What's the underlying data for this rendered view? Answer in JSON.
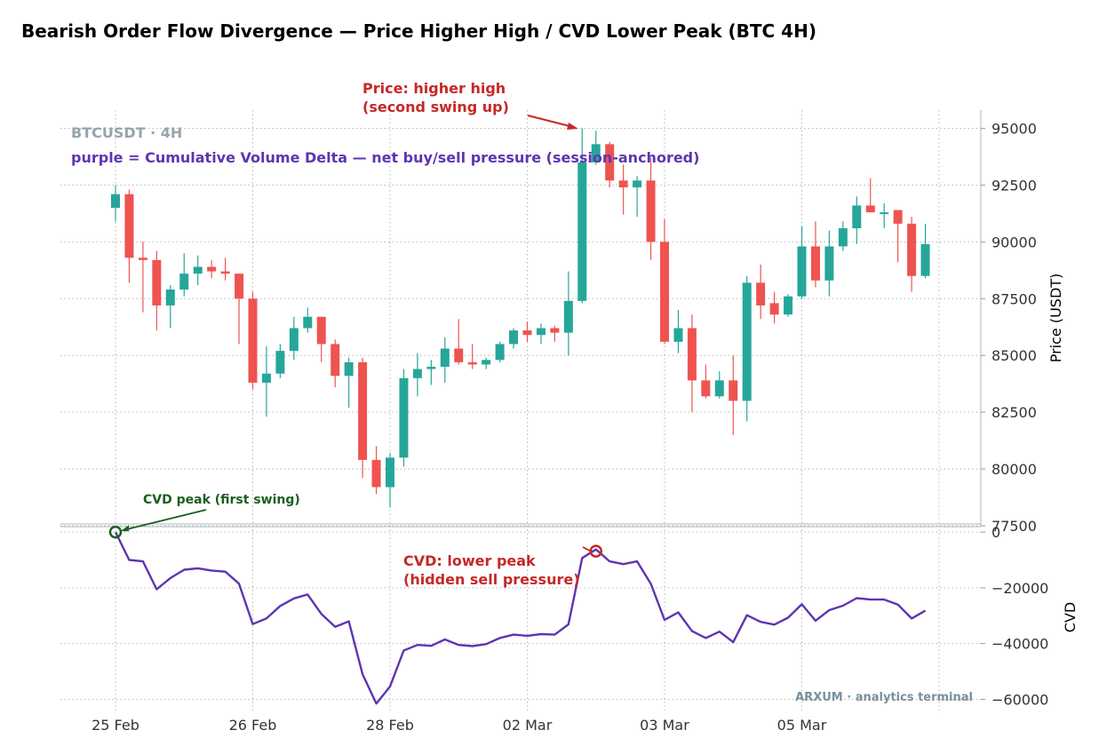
{
  "chart_data": {
    "type": "candlestick",
    "title": "Bearish Order Flow Divergence — Price Higher High / CVD Lower Peak (BTC 4H)",
    "watermark": "BTCUSDT · 4H",
    "legend_note": "purple = Cumulative Volume Delta — net buy/sell pressure (session-anchored)",
    "footer": "ARXUM · analytics terminal",
    "x_tick_labels": [
      "25 Feb",
      "26 Feb",
      "28 Feb",
      "02 Mar",
      "03 Mar",
      "05 Mar"
    ],
    "x_tick_index": [
      0,
      10,
      20,
      30,
      40,
      50
    ],
    "price_panel": {
      "ylabel": "Price (USDT)",
      "ylim": [
        77500,
        95800
      ],
      "yticks": [
        77500,
        80000,
        82500,
        85000,
        87500,
        90000,
        92500,
        95000
      ],
      "candles": [
        {
          "o": 91500,
          "h": 92500,
          "l": 90900,
          "c": 92100
        },
        {
          "o": 92100,
          "h": 92300,
          "l": 88200,
          "c": 89300
        },
        {
          "o": 89300,
          "h": 90000,
          "l": 86900,
          "c": 89200
        },
        {
          "o": 89200,
          "h": 89600,
          "l": 86100,
          "c": 87200
        },
        {
          "o": 87200,
          "h": 88100,
          "l": 86200,
          "c": 87900
        },
        {
          "o": 87900,
          "h": 89500,
          "l": 87600,
          "c": 88600
        },
        {
          "o": 88600,
          "h": 89400,
          "l": 88100,
          "c": 88900
        },
        {
          "o": 88900,
          "h": 89200,
          "l": 88400,
          "c": 88700
        },
        {
          "o": 88700,
          "h": 89300,
          "l": 88300,
          "c": 88600
        },
        {
          "o": 88600,
          "h": 88600,
          "l": 85500,
          "c": 87500
        },
        {
          "o": 87500,
          "h": 87800,
          "l": 83500,
          "c": 83800
        },
        {
          "o": 83800,
          "h": 85400,
          "l": 82300,
          "c": 84200
        },
        {
          "o": 84200,
          "h": 85500,
          "l": 84000,
          "c": 85200
        },
        {
          "o": 85200,
          "h": 86700,
          "l": 84800,
          "c": 86200
        },
        {
          "o": 86200,
          "h": 87100,
          "l": 86000,
          "c": 86700
        },
        {
          "o": 86700,
          "h": 86700,
          "l": 84700,
          "c": 85500
        },
        {
          "o": 85500,
          "h": 85700,
          "l": 83600,
          "c": 84100
        },
        {
          "o": 84100,
          "h": 84900,
          "l": 82700,
          "c": 84700
        },
        {
          "o": 84700,
          "h": 84900,
          "l": 79600,
          "c": 80400
        },
        {
          "o": 80400,
          "h": 81000,
          "l": 78900,
          "c": 79200
        },
        {
          "o": 79200,
          "h": 80700,
          "l": 78300,
          "c": 80500
        },
        {
          "o": 80500,
          "h": 84400,
          "l": 80100,
          "c": 84000
        },
        {
          "o": 84000,
          "h": 85100,
          "l": 83200,
          "c": 84400
        },
        {
          "o": 84400,
          "h": 84800,
          "l": 83700,
          "c": 84500
        },
        {
          "o": 84500,
          "h": 85800,
          "l": 83800,
          "c": 85300
        },
        {
          "o": 85300,
          "h": 86600,
          "l": 84600,
          "c": 84700
        },
        {
          "o": 84700,
          "h": 85500,
          "l": 84400,
          "c": 84600
        },
        {
          "o": 84600,
          "h": 84900,
          "l": 84400,
          "c": 84800
        },
        {
          "o": 84800,
          "h": 85600,
          "l": 84700,
          "c": 85500
        },
        {
          "o": 85500,
          "h": 86200,
          "l": 85300,
          "c": 86100
        },
        {
          "o": 86100,
          "h": 86500,
          "l": 85600,
          "c": 85900
        },
        {
          "o": 85900,
          "h": 86400,
          "l": 85500,
          "c": 86200
        },
        {
          "o": 86200,
          "h": 86300,
          "l": 85600,
          "c": 86000
        },
        {
          "o": 86000,
          "h": 88700,
          "l": 85000,
          "c": 87400
        },
        {
          "o": 87400,
          "h": 95000,
          "l": 87300,
          "c": 93500
        },
        {
          "o": 93500,
          "h": 94900,
          "l": 93400,
          "c": 94300
        },
        {
          "o": 94300,
          "h": 94400,
          "l": 92400,
          "c": 92700
        },
        {
          "o": 92700,
          "h": 93400,
          "l": 91200,
          "c": 92400
        },
        {
          "o": 92400,
          "h": 92900,
          "l": 91100,
          "c": 92700
        },
        {
          "o": 92700,
          "h": 93700,
          "l": 89200,
          "c": 90000
        },
        {
          "o": 90000,
          "h": 91000,
          "l": 85500,
          "c": 85600
        },
        {
          "o": 85600,
          "h": 87000,
          "l": 85100,
          "c": 86200
        },
        {
          "o": 86200,
          "h": 86800,
          "l": 82500,
          "c": 83900
        },
        {
          "o": 83900,
          "h": 84600,
          "l": 83100,
          "c": 83200
        },
        {
          "o": 83200,
          "h": 84300,
          "l": 83100,
          "c": 83900
        },
        {
          "o": 83900,
          "h": 85000,
          "l": 81500,
          "c": 83000
        },
        {
          "o": 83000,
          "h": 88500,
          "l": 82100,
          "c": 88200
        },
        {
          "o": 88200,
          "h": 89000,
          "l": 86600,
          "c": 87200
        },
        {
          "o": 87300,
          "h": 87800,
          "l": 86400,
          "c": 86800
        },
        {
          "o": 86800,
          "h": 87700,
          "l": 86700,
          "c": 87600
        },
        {
          "o": 87600,
          "h": 90700,
          "l": 87500,
          "c": 89800
        },
        {
          "o": 89800,
          "h": 90900,
          "l": 88000,
          "c": 88300
        },
        {
          "o": 88300,
          "h": 90500,
          "l": 87600,
          "c": 89800
        },
        {
          "o": 89800,
          "h": 90900,
          "l": 89600,
          "c": 90600
        },
        {
          "o": 90600,
          "h": 92000,
          "l": 89900,
          "c": 91600
        },
        {
          "o": 91600,
          "h": 92800,
          "l": 91300,
          "c": 91300
        },
        {
          "o": 91300,
          "h": 91700,
          "l": 90600,
          "c": 91300
        },
        {
          "o": 91400,
          "h": 91400,
          "l": 89100,
          "c": 90800
        },
        {
          "o": 90800,
          "h": 91100,
          "l": 87800,
          "c": 88500
        },
        {
          "o": 88500,
          "h": 90800,
          "l": 88400,
          "c": 89900
        }
      ]
    },
    "cvd_panel": {
      "ylabel": "CVD",
      "ylim": [
        -64000,
        1000
      ],
      "yticks": [
        0,
        -20000,
        -40000,
        -60000
      ],
      "series": [
        {
          "values": [
            0,
            -10000,
            -10500,
            -20500,
            -16500,
            -13500,
            -13000,
            -13800,
            -14200,
            -18500,
            -33000,
            -31000,
            -26500,
            -23800,
            -22400,
            -29400,
            -34000,
            -32000,
            -51000,
            -61500,
            -55400,
            -42500,
            -40500,
            -40800,
            -38500,
            -40500,
            -40900,
            -40200,
            -38000,
            -36800,
            -37200,
            -36600,
            -36800,
            -33100,
            -9300,
            -6200,
            -10500,
            -11500,
            -10500,
            -18500,
            -31500,
            -28800,
            -35500,
            -38000,
            -35700,
            -39500,
            -29800,
            -32200,
            -33200,
            -30700,
            -25900,
            -31800,
            -28000,
            -26400,
            -23700,
            -24200,
            -24200,
            -26000,
            -31000,
            -28200
          ]
        }
      ]
    },
    "annotations": {
      "price_hh_label": [
        "Price: higher high",
        "(second swing up)"
      ],
      "cvd_lower_label": [
        "CVD: lower peak",
        "(hidden sell pressure)"
      ],
      "cvd_first_label": "CVD peak (first swing)"
    },
    "colors": {
      "up": "#26a69a",
      "down": "#ef5350",
      "cvd": "#5e35b1",
      "annotation_red": "#c62828",
      "annotation_green": "#1b5e20"
    }
  }
}
